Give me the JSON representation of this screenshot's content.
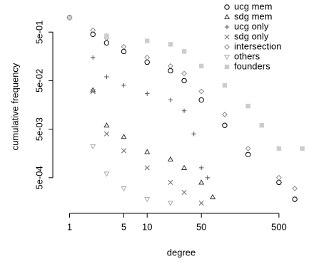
{
  "chart_data": {
    "type": "scatter",
    "x_label": "degree",
    "y_label": "cumulative frequency",
    "log_x": true,
    "log_y": true,
    "legend": "top-right",
    "xlim": [
      0.72,
      1030
    ],
    "ylim": [
      0.000129,
      1.94
    ],
    "xticks": [
      1,
      5,
      10,
      50,
      500
    ],
    "yticks": [
      {
        "value": 0.5,
        "label": "5e-01"
      },
      {
        "value": 0.05,
        "label": "5e-02"
      },
      {
        "value": 0.005,
        "label": "5e-03"
      },
      {
        "value": 0.0005,
        "label": "5e-04"
      }
    ],
    "series": [
      {
        "name": "ucg mem",
        "marker": "circle",
        "color": "#000000",
        "x": [
          1,
          2,
          3,
          5,
          10,
          20,
          30,
          50,
          100,
          200,
          500,
          800
        ],
        "values": [
          1,
          0.45,
          0.3,
          0.2,
          0.12,
          0.08,
          0.05,
          0.02,
          0.006,
          0.0015,
          0.0004,
          0.00018
        ]
      },
      {
        "name": "sdg mem",
        "marker": "triangle",
        "color": "#333333",
        "x": [
          2,
          3,
          5,
          10,
          20,
          30,
          50,
          70
        ],
        "values": [
          0.032,
          0.006,
          0.0035,
          0.0017,
          0.0012,
          0.0008,
          0.0004,
          0.0002
        ]
      },
      {
        "name": "ucg only",
        "marker": "plus",
        "color": "#555555",
        "x": [
          2,
          3,
          5,
          10,
          20,
          30,
          40,
          50,
          60
        ],
        "values": [
          0.15,
          0.06,
          0.04,
          0.027,
          0.02,
          0.012,
          0.004,
          0.0008,
          0.0005
        ]
      },
      {
        "name": "sdg only",
        "marker": "cross",
        "color": "#666666",
        "x": [
          2,
          3,
          5,
          10,
          20,
          30,
          50
        ],
        "values": [
          0.03,
          0.004,
          0.0018,
          0.0008,
          0.0004,
          0.00025,
          0.00015
        ]
      },
      {
        "name": "intersection",
        "marker": "diamond",
        "color": "#888888",
        "x": [
          2,
          3,
          5,
          10,
          20,
          30,
          50,
          100,
          200,
          500,
          800
        ],
        "values": [
          0.55,
          0.38,
          0.25,
          0.15,
          0.1,
          0.07,
          0.03,
          0.01,
          0.002,
          0.0005,
          0.0003
        ]
      },
      {
        "name": "others",
        "marker": "triangle-down",
        "color": "#aaaaaa",
        "x": [
          2,
          3,
          5,
          10,
          20
        ],
        "values": [
          0.0022,
          0.0006,
          0.0003,
          0.00018,
          0.00015
        ]
      },
      {
        "name": "founders",
        "marker": "square",
        "color": "#cccccc",
        "x": [
          1,
          3,
          10,
          20,
          30,
          50,
          100,
          200,
          300,
          500,
          1000
        ],
        "values": [
          1,
          0.42,
          0.33,
          0.28,
          0.2,
          0.1,
          0.04,
          0.015,
          0.006,
          0.002,
          0.002
        ]
      }
    ]
  }
}
